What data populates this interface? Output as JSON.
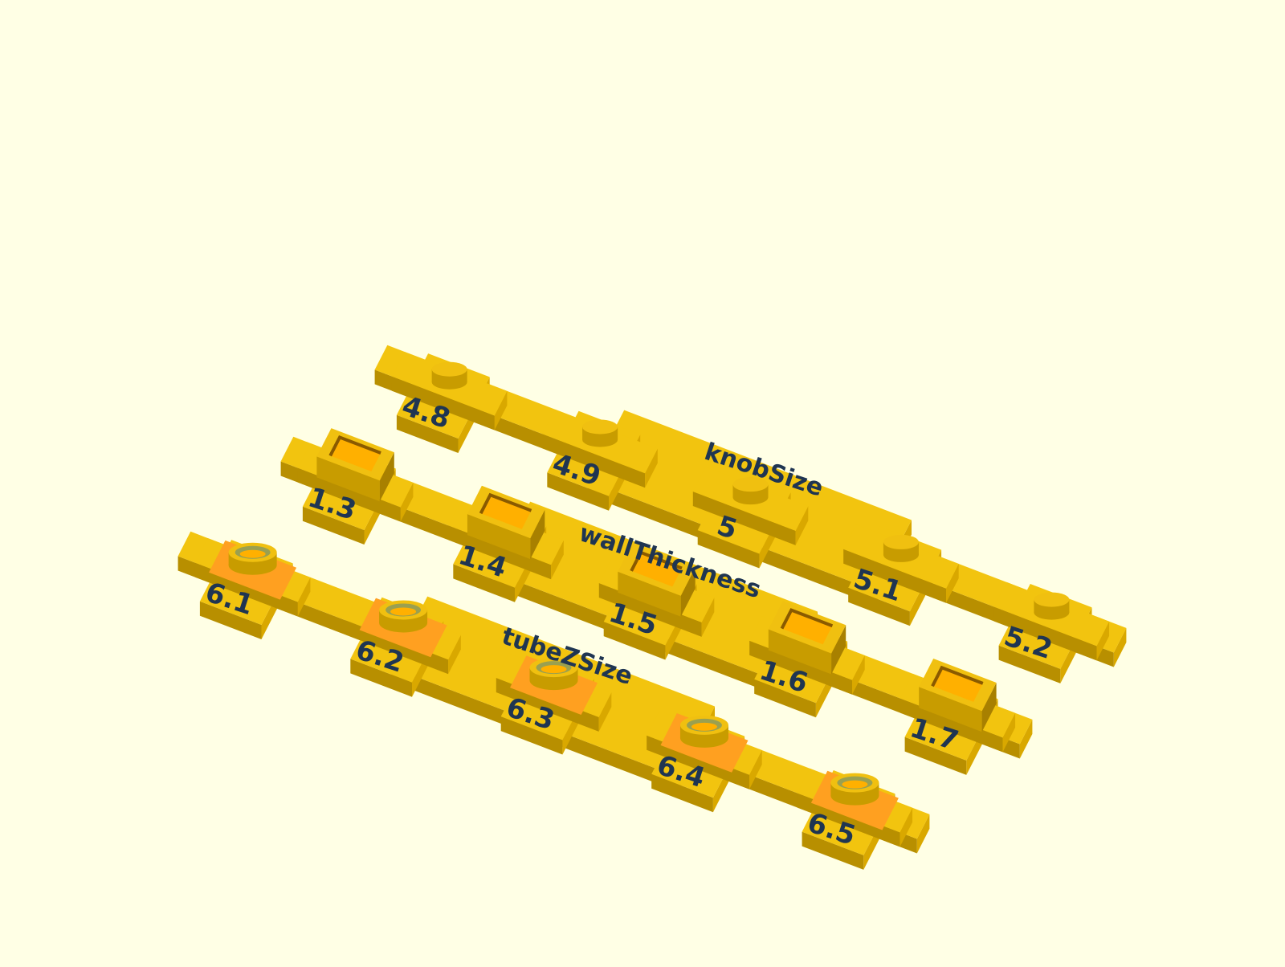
{
  "colors": {
    "background": "#ffffe5",
    "plate_top": "#f2c40f",
    "plate_side": "#b88f00",
    "knob_top": "#f0c010",
    "knob_side": "#c89c00",
    "cavity": "#ffb000",
    "tube_pad": "#ffa020",
    "tube_inner": "#9aa050",
    "label_text": "#1f3552"
  },
  "rows": [
    {
      "name": "knobSize",
      "feature": "knob",
      "title": "knobSize",
      "labels": [
        "4.8",
        "4.9",
        "5",
        "5.1",
        "5.2"
      ]
    },
    {
      "name": "wallThickness",
      "feature": "box",
      "title": "wallThickness",
      "labels": [
        "1.3",
        "1.4",
        "1.5",
        "1.6",
        "1.7"
      ]
    },
    {
      "name": "tubeZSize",
      "feature": "tube",
      "title": "tubeZSize",
      "labels": [
        "6.1",
        "6.2",
        "6.3",
        "6.4",
        "6.5"
      ]
    }
  ]
}
